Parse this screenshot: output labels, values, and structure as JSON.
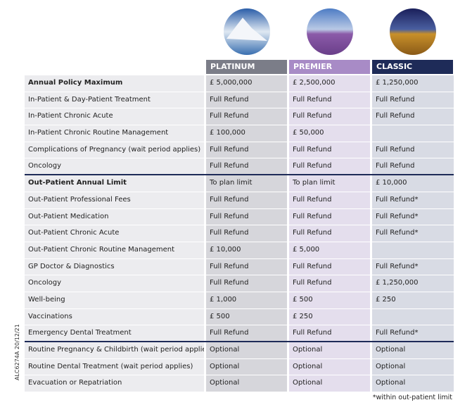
{
  "table": {
    "columns": [
      "PLATINUM",
      "PREMIER",
      "CLASSIC"
    ],
    "rows": [
      [
        "Annual Policy Maximum",
        "£ 5,000,000",
        "£ 2,500,000",
        "£ 1,250,000"
      ],
      [
        "In-Patient & Day-Patient Treatment",
        "Full Refund",
        "Full Refund",
        "Full Refund"
      ],
      [
        "In-Patient Chronic Acute",
        "Full Refund",
        "Full Refund",
        "Full Refund"
      ],
      [
        "In-Patient Chronic Routine Management",
        "£ 100,000",
        "£ 50,000",
        null
      ],
      [
        "Complications of Pregnancy  (wait period applies)",
        "Full Refund",
        "Full Refund",
        "Full Refund"
      ],
      [
        "Oncology",
        "Full Refund",
        "Full Refund",
        "Full Refund"
      ],
      [
        "Out-Patient Annual Limit",
        "To plan limit",
        "To plan limit",
        "£ 10,000"
      ],
      [
        "Out-Patient Professional Fees",
        "Full Refund",
        "Full Refund",
        "Full Refund*"
      ],
      [
        "Out-Patient Medication",
        "Full Refund",
        "Full Refund",
        "Full Refund*"
      ],
      [
        "Out-Patient Chronic Acute",
        "Full Refund",
        "Full Refund",
        "Full Refund*"
      ],
      [
        "Out-Patient Chronic Routine Management",
        "£ 10,000",
        "£ 5,000",
        null
      ],
      [
        "GP Doctor & Diagnostics",
        "Full Refund",
        "Full Refund",
        "Full Refund*"
      ],
      [
        "Oncology",
        "Full Refund",
        "Full Refund",
        "£ 1,250,000"
      ],
      [
        "Well-being",
        "£ 1,000",
        "£ 500",
        "£ 250"
      ],
      [
        "Vaccinations",
        "£ 500",
        "£ 250",
        null
      ],
      [
        "Emergency Dental Treatment",
        "Full Refund",
        "Full Refund",
        "Full Refund*"
      ],
      [
        "Routine Pregnancy & Childbirth  (wait period applies)",
        "Optional",
        "Optional",
        "Optional"
      ],
      [
        "Routine Dental Treatment (wait period applies)",
        "Optional",
        "Optional",
        "Optional"
      ],
      [
        "Evacuation or Repatriation",
        "Optional",
        "Optional",
        "Optional"
      ]
    ],
    "footnote": "*within out-patient limit",
    "side_code": "ALC6274A  20/12/21"
  }
}
